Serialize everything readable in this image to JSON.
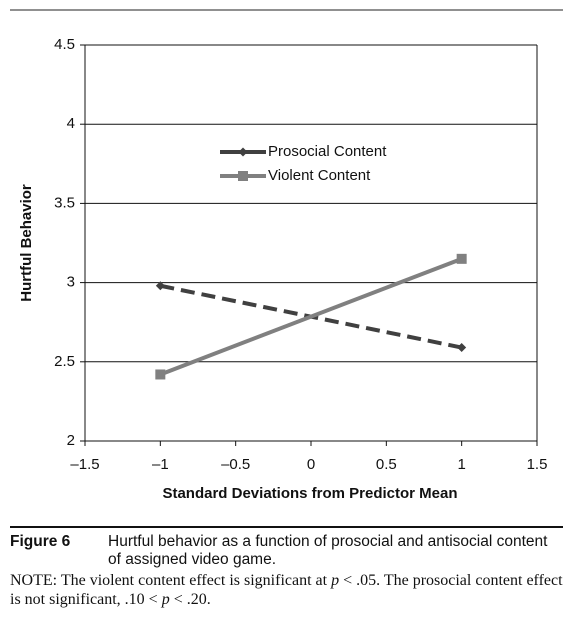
{
  "chart_data": {
    "type": "line",
    "x_label": "Standard Deviations from Predictor Mean",
    "y_label": "Hurtful Behavior",
    "x": [
      -1,
      1
    ],
    "series": [
      {
        "name": "Prosocial Content",
        "color": "#404040",
        "line_style": "dashed",
        "marker": "diamond",
        "values": [
          2.98,
          2.59
        ]
      },
      {
        "name": "Violent Content",
        "color": "#808080",
        "line_style": "solid",
        "marker": "square",
        "values": [
          2.42,
          3.15
        ]
      }
    ],
    "xlim": [
      -1.5,
      1.5
    ],
    "xticks": [
      {
        "value": -1.5,
        "label": "–1.5"
      },
      {
        "value": -1,
        "label": "–1"
      },
      {
        "value": -0.5,
        "label": "–0.5"
      },
      0,
      0.5,
      1,
      1.5
    ],
    "ylim": [
      2,
      4.5
    ],
    "yticks": [
      2,
      2.5,
      3,
      3.5,
      4,
      4.5
    ],
    "grid": true
  },
  "caption": {
    "label": "Figure 6",
    "text": "Hurtful behavior as a function of prosocial and antisocial content of assigned video game."
  },
  "note": [
    "NOTE: The violent content effect is significant at ",
    "p",
    " < .05. The prosocial content effect is not significant, .10 < ",
    "p",
    " < .20."
  ]
}
